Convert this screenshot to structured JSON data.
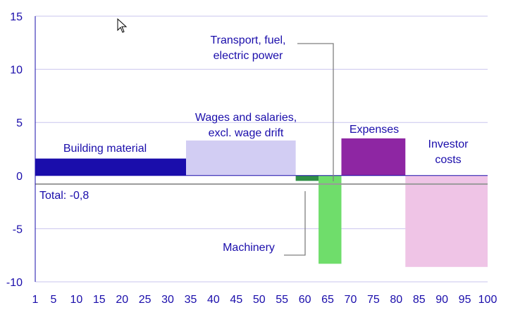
{
  "chart_data": {
    "type": "bar",
    "variant": "variable-width",
    "xlim": [
      1,
      100
    ],
    "ylim": [
      -10,
      15
    ],
    "x_ticks": [
      1,
      5,
      10,
      15,
      20,
      25,
      30,
      35,
      40,
      45,
      50,
      55,
      60,
      65,
      70,
      75,
      80,
      85,
      90,
      95,
      100
    ],
    "y_ticks": [
      15,
      10,
      5,
      0,
      -5,
      -10
    ],
    "grid": true,
    "bars": [
      {
        "label": "Building material",
        "x_start": 1,
        "x_end": 34,
        "value": 1.6,
        "color": "#1a0dab"
      },
      {
        "label": "Wages and salaries, excl. wage drift",
        "x_start": 34,
        "x_end": 58,
        "value": 3.3,
        "color": "#d2cdf3"
      },
      {
        "label": "Machinery",
        "x_start": 58,
        "x_end": 63,
        "value": -0.5,
        "color": "#2f8e46"
      },
      {
        "label": "Transport, fuel, electric power",
        "x_start": 63,
        "x_end": 68,
        "value": -8.3,
        "color": "#6fdd6b"
      },
      {
        "label": "Expenses",
        "x_start": 68,
        "x_end": 82,
        "value": 3.5,
        "color": "#8e26a3"
      },
      {
        "label": "Investor costs",
        "x_start": 82,
        "x_end": 100,
        "value": -8.6,
        "color": "#efc4e6"
      }
    ],
    "total": {
      "label": "Total: -0,8",
      "value": -0.8,
      "color": "#9a9a9a"
    }
  },
  "labels": {
    "building_material": "Building material",
    "wages_line1": "Wages and salaries,",
    "wages_line2": "excl. wage drift",
    "transport_line1": "Transport, fuel,",
    "transport_line2": "electric power",
    "expenses": "Expenses",
    "investor_line1": "Investor",
    "investor_line2": "costs",
    "machinery": "Machinery",
    "total": "Total: -0,8"
  }
}
